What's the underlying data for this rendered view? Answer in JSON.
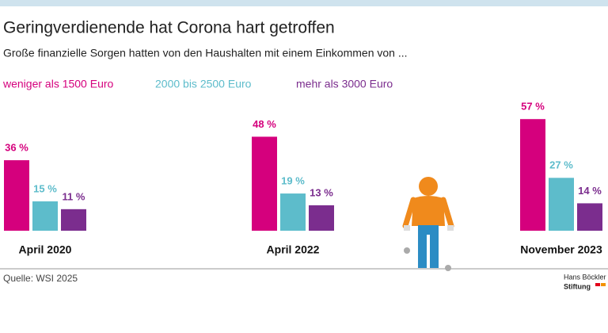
{
  "chart_data": {
    "type": "bar",
    "title": "Geringverdienende hat Corona hart getroffen",
    "subtitle": "Große finanzielle Sorgen hatten von den Haushalten mit einem Einkommen von ...",
    "categories": [
      "April 2020",
      "April 2022",
      "November 2023"
    ],
    "series": [
      {
        "name": "weniger als 1500 Euro",
        "color": "#d5007d",
        "values": [
          36,
          48,
          57
        ],
        "value_labels": [
          "36 %",
          "48 %",
          "57 %"
        ]
      },
      {
        "name": "2000 bis 2500 Euro",
        "color": "#5dbccb",
        "values": [
          15,
          19,
          27
        ],
        "value_labels": [
          "15 %",
          "19 %",
          "27 %"
        ]
      },
      {
        "name": "mehr als 3000 Euro",
        "color": "#7b2d8e",
        "values": [
          11,
          13,
          14
        ],
        "value_labels": [
          "11 %",
          "13 %",
          "14 %"
        ]
      }
    ],
    "source": "Quelle: WSI 2025",
    "logo": [
      "Hans Böckler",
      "Stiftung"
    ]
  }
}
